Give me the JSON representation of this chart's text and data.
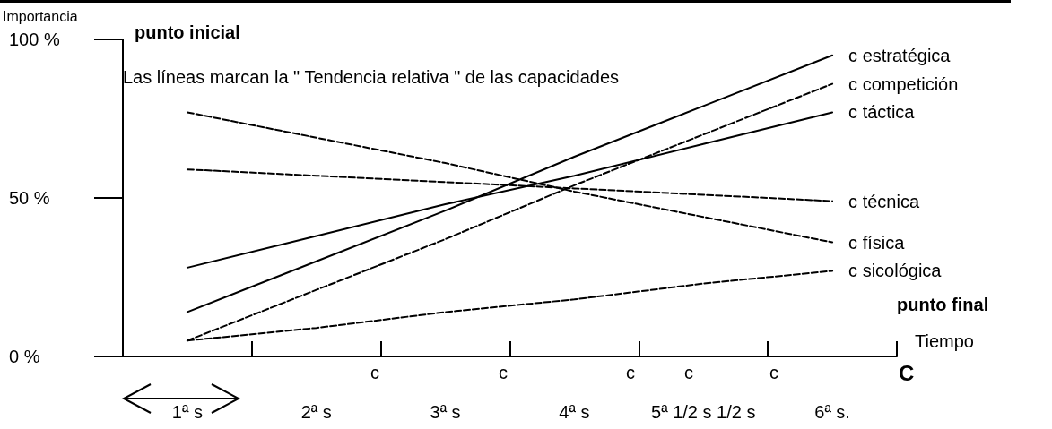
{
  "chart_data": {
    "type": "line",
    "xlabel": "Tiempo",
    "ylabel": "Importancia",
    "annotations": [
      "punto inicial",
      "Las líneas marcan la \" Tendencia relativa \" de las capacidades",
      "punto final",
      "c",
      "c",
      "c",
      "c",
      "c",
      "C"
    ],
    "categories": [
      "1ª s",
      "2ª s",
      "3ª s",
      "4ª s",
      "5ª 1/2 s 1/2 s",
      "6ª s."
    ],
    "ylim": [
      0,
      100
    ],
    "yticks": [
      {
        "value": 0,
        "label": "0 %"
      },
      {
        "value": 50,
        "label": "50 %"
      },
      {
        "value": 100,
        "label": "100 %"
      }
    ],
    "marker": "none",
    "series": [
      {
        "name": "c estratégica",
        "color": "#000000",
        "line_style": "solid",
        "values": [
          14,
          30,
          46,
          63,
          79,
          95
        ]
      },
      {
        "name": "c competición",
        "color": "#000000",
        "line_style": "dashed",
        "values": [
          5,
          21,
          37,
          54,
          70,
          86
        ]
      },
      {
        "name": "c táctica",
        "color": "#000000",
        "line_style": "solid",
        "values": [
          28,
          38,
          48,
          57,
          67,
          77
        ]
      },
      {
        "name": "c técnica",
        "color": "#000000",
        "line_style": "dashed",
        "values": [
          59,
          57,
          55,
          53,
          51,
          49
        ]
      },
      {
        "name": "c física",
        "color": "#000000",
        "line_style": "dashed",
        "values": [
          77,
          69,
          61,
          52,
          44,
          36
        ]
      },
      {
        "name": "c sicológica",
        "color": "#000000",
        "line_style": "dashed",
        "values": [
          5,
          9,
          14,
          18,
          23,
          27
        ]
      }
    ]
  }
}
